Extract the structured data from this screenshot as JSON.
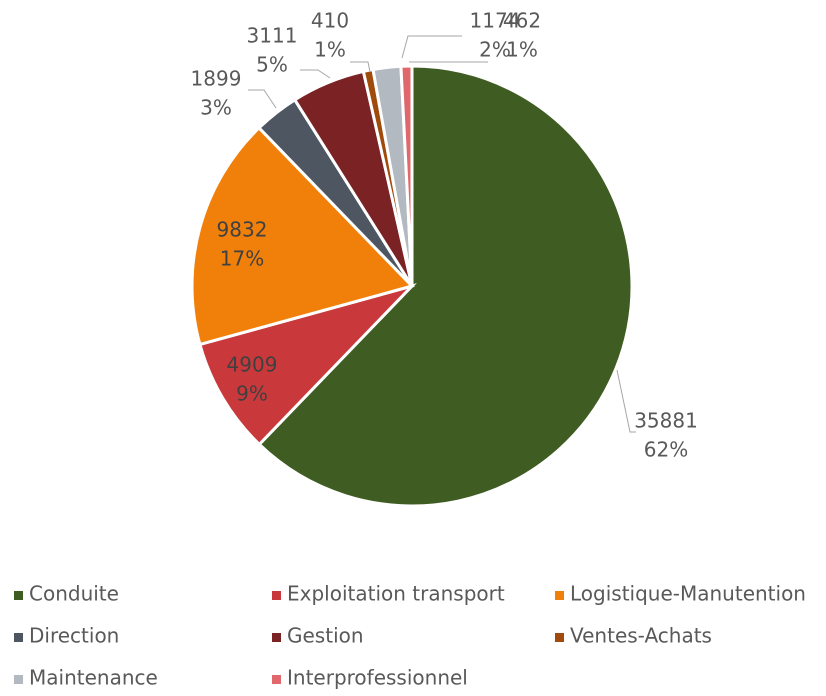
{
  "chart_data": {
    "type": "pie",
    "categories": [
      "Conduite",
      "Exploitation transport",
      "Logistique-Manutention",
      "Direction",
      "Gestion",
      "Ventes-Achats",
      "Maintenance",
      "Interprofessionnel"
    ],
    "values": [
      35881,
      4909,
      9832,
      1899,
      3111,
      410,
      1174,
      462
    ],
    "percent_labels": [
      "62%",
      "9%",
      "17%",
      "3%",
      "5%",
      "1%",
      "2%",
      "1%"
    ],
    "colors": [
      "#3f5c23",
      "#c9393b",
      "#f0800a",
      "#4e5662",
      "#7a2224",
      "#a04a0c",
      "#b3b9c1",
      "#e0686d"
    ],
    "legend": "bottom"
  }
}
